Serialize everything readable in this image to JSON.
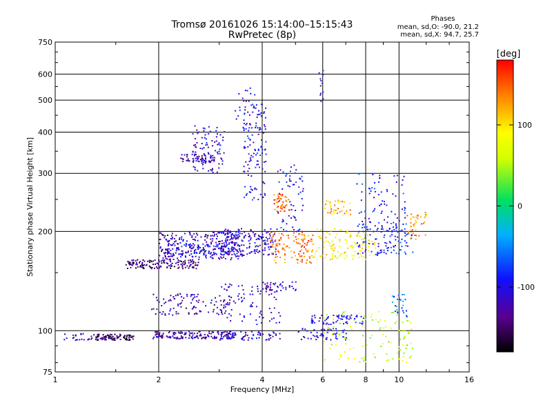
{
  "chart_data": {
    "type": "scatter",
    "title": "Tromsø 20161026 15:14:00–15:15:43",
    "subtitle": "RwPretec (8p)",
    "xlabel": "Frequency [MHz]",
    "ylabel": "Stationary phase Virtual Height [km]",
    "x_scale": "log",
    "y_scale": "log",
    "xlim": [
      1,
      16
    ],
    "ylim": [
      75,
      750
    ],
    "x_ticks": [
      1,
      2,
      4,
      6,
      8,
      10,
      16
    ],
    "y_ticks": [
      75,
      100,
      200,
      300,
      400,
      500,
      600,
      750
    ],
    "grid": true,
    "phase_box": {
      "title": "Phases",
      "line1": "mean, sd,O: -90.0, 21.2",
      "line2": "mean, sd,X:  94.7, 25.7"
    },
    "colorbar": {
      "label": "[deg]",
      "min": -180,
      "max": 180,
      "ticks": [
        100,
        0,
        -100
      ],
      "colormap": "rainbow"
    },
    "clusters": [
      {
        "x": [
          1.05,
          1.3
        ],
        "y": [
          94,
          99
        ],
        "phase": -120,
        "n": 25
      },
      {
        "x": [
          1.3,
          1.7
        ],
        "y": [
          94,
          98
        ],
        "phase": -150,
        "n": 90
      },
      {
        "x": [
          1.9,
          3.3
        ],
        "y": [
          95,
          100
        ],
        "phase": -125,
        "n": 150
      },
      {
        "x": [
          3.0,
          4.5
        ],
        "y": [
          94,
          100
        ],
        "phase": -110,
        "n": 70
      },
      {
        "x": [
          5.0,
          7.0
        ],
        "y": [
          94,
          102
        ],
        "phase": -100,
        "n": 60
      },
      {
        "x": [
          6.0,
          11.0
        ],
        "y": [
          80,
          115
        ],
        "phase": 60,
        "n": 120
      },
      {
        "x": [
          1.6,
          2.6
        ],
        "y": [
          155,
          165
        ],
        "phase": -140,
        "n": 140
      },
      {
        "x": [
          2.0,
          3.5
        ],
        "y": [
          165,
          200
        ],
        "phase": -120,
        "n": 260
      },
      {
        "x": [
          3.0,
          4.4
        ],
        "y": [
          170,
          205
        ],
        "phase": -110,
        "n": 180
      },
      {
        "x": [
          4.2,
          5.6
        ],
        "y": [
          160,
          200
        ],
        "phase": 140,
        "n": 120
      },
      {
        "x": [
          5.5,
          8.5
        ],
        "y": [
          165,
          205
        ],
        "phase": 90,
        "n": 120
      },
      {
        "x": [
          7.5,
          11.0
        ],
        "y": [
          170,
          215
        ],
        "phase": -90,
        "n": 110
      },
      {
        "x": [
          1.9,
          3.2
        ],
        "y": [
          112,
          130
        ],
        "phase": -125,
        "n": 110
      },
      {
        "x": [
          3.0,
          4.5
        ],
        "y": [
          105,
          140
        ],
        "phase": -115,
        "n": 80
      },
      {
        "x": [
          4.0,
          5.0
        ],
        "y": [
          132,
          142
        ],
        "phase": -110,
        "n": 40
      },
      {
        "x": [
          5.5,
          8.0
        ],
        "y": [
          105,
          112
        ],
        "phase": -100,
        "n": 70
      },
      {
        "x": [
          2.3,
          2.9
        ],
        "y": [
          325,
          345
        ],
        "phase": -120,
        "n": 60
      },
      {
        "x": [
          2.5,
          3.1
        ],
        "y": [
          300,
          420
        ],
        "phase": -110,
        "n": 90
      },
      {
        "x": [
          3.5,
          4.1
        ],
        "y": [
          250,
          500
        ],
        "phase": -100,
        "n": 130
      },
      {
        "x": [
          4.3,
          4.8
        ],
        "y": [
          230,
          260
        ],
        "phase": 150,
        "n": 45
      },
      {
        "x": [
          4.4,
          5.3
        ],
        "y": [
          200,
          320
        ],
        "phase": -100,
        "n": 60
      },
      {
        "x": [
          6.0,
          7.2
        ],
        "y": [
          225,
          250
        ],
        "phase": 120,
        "n": 40
      },
      {
        "x": [
          7.5,
          10.5
        ],
        "y": [
          200,
          300
        ],
        "phase": -90,
        "n": 80
      },
      {
        "x": [
          10.5,
          12.0
        ],
        "y": [
          190,
          230
        ],
        "phase": 130,
        "n": 40
      },
      {
        "x": [
          3.3,
          3.8
        ],
        "y": [
          440,
          550
        ],
        "phase": -110,
        "n": 15
      },
      {
        "x": [
          5.8,
          6.0
        ],
        "y": [
          480,
          620
        ],
        "phase": -100,
        "n": 12
      },
      {
        "x": [
          9.5,
          10.5
        ],
        "y": [
          110,
          130
        ],
        "phase": -60,
        "n": 25
      },
      {
        "x": [
          2.1,
          3.2
        ],
        "y": [
          170,
          185
        ],
        "phase": -100,
        "n": 80
      }
    ]
  }
}
